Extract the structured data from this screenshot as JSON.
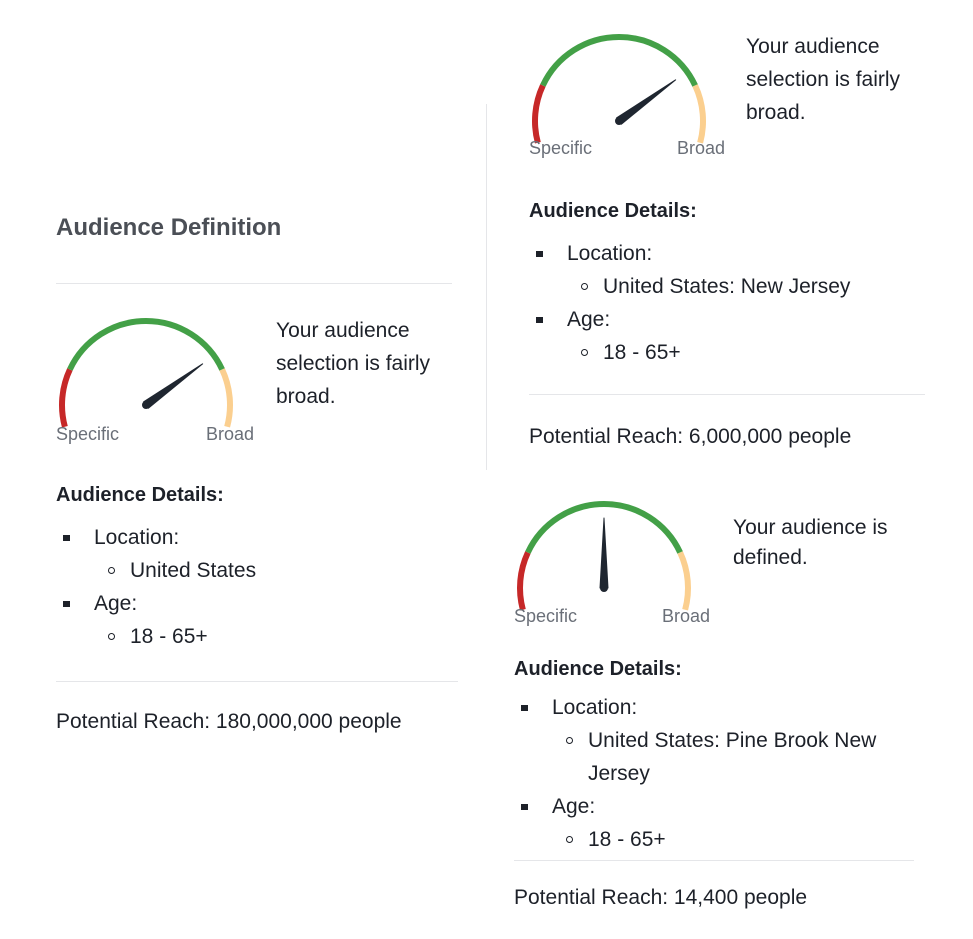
{
  "colors": {
    "gauge_specific": "#c62828",
    "gauge_mid": "#43a047",
    "gauge_broad": "#fbcf8f",
    "needle": "#1f2630"
  },
  "panels": [
    {
      "title": "Audience Definition",
      "gauge": {
        "label_left": "Specific",
        "label_right": "Broad",
        "needle_level": 0.8
      },
      "verdict": "Your audience selection is fairly broad.",
      "details_heading": "Audience Details:",
      "details": [
        {
          "label": "Location:",
          "values": [
            "United States"
          ]
        },
        {
          "label": "Age:",
          "values": [
            "18 - 65+"
          ]
        }
      ],
      "reach": "Potential Reach: 180,000,000 people"
    },
    {
      "title": "",
      "gauge": {
        "label_left": "Specific",
        "label_right": "Broad",
        "needle_level": 0.8
      },
      "verdict": "Your audience selection is fairly broad.",
      "details_heading": "Audience Details:",
      "details": [
        {
          "label": "Location:",
          "values": [
            "United States: New Jersey"
          ]
        },
        {
          "label": "Age:",
          "values": [
            "18 - 65+"
          ]
        }
      ],
      "reach": "Potential Reach: 6,000,000 people"
    },
    {
      "title": "",
      "gauge": {
        "label_left": "Specific",
        "label_right": "Broad",
        "needle_level": 0.5
      },
      "verdict": "Your audience is defined.",
      "details_heading": "Audience Details:",
      "details": [
        {
          "label": "Location:",
          "values": [
            "United States: Pine Brook New Jersey"
          ]
        },
        {
          "label": "Age:",
          "values": [
            "18 - 65+"
          ]
        }
      ],
      "reach": "Potential Reach: 14,400 people"
    }
  ]
}
